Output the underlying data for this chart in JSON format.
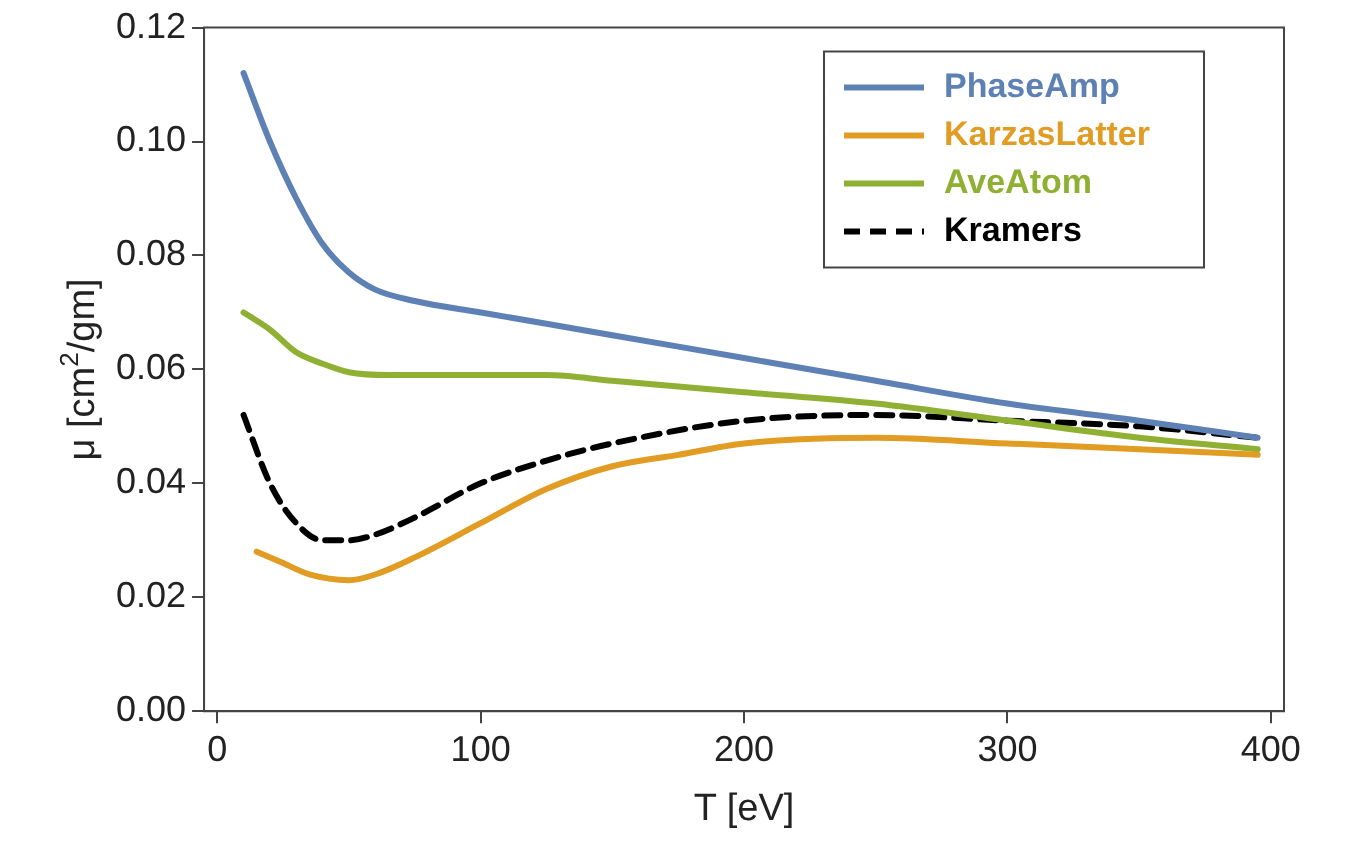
{
  "chart_data": {
    "type": "line",
    "xlabel": "T [eV]",
    "ylabel": "μ [cm$^{2}$/gm]",
    "xlim": [
      -5,
      405
    ],
    "xticks": [
      0,
      100,
      200,
      300,
      400
    ],
    "ylim": [
      0,
      0.12
    ],
    "yticks": [
      {
        "value": 0,
        "label": "0.00"
      },
      {
        "value": 0.02,
        "label": "0.02"
      },
      {
        "value": 0.04,
        "label": "0.04"
      },
      {
        "value": 0.06,
        "label": "0.06"
      },
      {
        "value": 0.08,
        "label": "0.08"
      },
      {
        "value": 0.1,
        "label": "0.10"
      },
      {
        "value": 0.12,
        "label": "0.12"
      }
    ],
    "grid": false,
    "legend": "top right",
    "marker": "none",
    "series": [
      {
        "name": "PhaseAmp",
        "color": "#5e81b5",
        "x": [
          10,
          20,
          30,
          40,
          50,
          60,
          75,
          100,
          125,
          150,
          200,
          250,
          300,
          350,
          395
        ],
        "values": [
          0.112,
          0.1,
          0.09,
          0.082,
          0.077,
          0.074,
          0.072,
          0.07,
          0.068,
          0.066,
          0.062,
          0.058,
          0.054,
          0.051,
          0.048
        ]
      },
      {
        "name": "KarzasLatter",
        "color": "#e19c24",
        "x": [
          15,
          25,
          35,
          50,
          60,
          75,
          100,
          125,
          150,
          175,
          200,
          250,
          300,
          350,
          395
        ],
        "values": [
          0.028,
          0.026,
          0.024,
          0.023,
          0.024,
          0.027,
          0.033,
          0.039,
          0.043,
          0.045,
          0.047,
          0.048,
          0.047,
          0.046,
          0.045
        ]
      },
      {
        "name": "AveAtom",
        "color": "#8fb032",
        "x": [
          10,
          20,
          30,
          40,
          50,
          65,
          100,
          125,
          150,
          200,
          250,
          300,
          350,
          395
        ],
        "values": [
          0.07,
          0.067,
          0.063,
          0.061,
          0.0595,
          0.059,
          0.059,
          0.059,
          0.058,
          0.056,
          0.054,
          0.051,
          0.048,
          0.046
        ]
      },
      {
        "name": "Kramers",
        "color": "#000000",
        "line_style": "dashed",
        "x": [
          10,
          20,
          30,
          40,
          50,
          60,
          75,
          100,
          125,
          150,
          200,
          250,
          300,
          350,
          395
        ],
        "values": [
          0.052,
          0.04,
          0.033,
          0.03,
          0.03,
          0.031,
          0.034,
          0.04,
          0.044,
          0.047,
          0.051,
          0.052,
          0.051,
          0.05,
          0.048
        ]
      }
    ]
  }
}
